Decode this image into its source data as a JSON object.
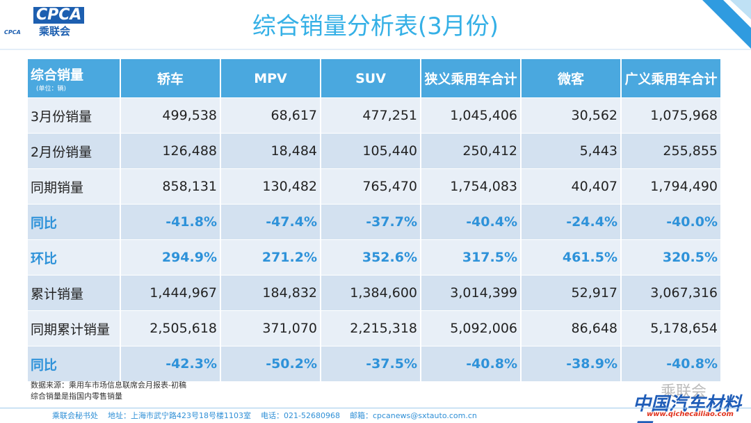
{
  "header": {
    "logo_text": "CPCA",
    "logo_sub": "乘联会",
    "logo_small": "CPCA",
    "title": "综合销量分析表(3月份)"
  },
  "table": {
    "corner_title": "综合销量",
    "corner_unit": "(单位：辆)",
    "columns": [
      "轿车",
      "MPV",
      "SUV",
      "狭义乘用车合计",
      "微客",
      "广义乘用车合计"
    ],
    "rows": [
      [
        "3月份销量",
        "499,538",
        "68,617",
        "477,251",
        "1,045,406",
        "30,562",
        "1,075,968"
      ],
      [
        "2月份销量",
        "126,488",
        "18,484",
        "105,440",
        "250,412",
        "5,443",
        "255,855"
      ],
      [
        "同期销量",
        "858,131",
        "130,482",
        "765,470",
        "1,754,083",
        "40,407",
        "1,794,490"
      ],
      [
        "同比",
        "-41.8%",
        "-47.4%",
        "-37.7%",
        "-40.4%",
        "-24.4%",
        "-40.0%"
      ],
      [
        "环比",
        "294.9%",
        "271.2%",
        "352.6%",
        "317.5%",
        "461.5%",
        "320.5%"
      ],
      [
        "累计销量",
        "1,444,967",
        "184,832",
        "1,384,600",
        "3,014,399",
        "52,917",
        "3,067,316"
      ],
      [
        "同期累计销量",
        "2,505,618",
        "371,070",
        "2,215,318",
        "5,092,006",
        "86,648",
        "5,178,654"
      ],
      [
        "同比",
        "-42.3%",
        "-50.2%",
        "-37.5%",
        "-40.8%",
        "-38.9%",
        "-40.8%"
      ]
    ]
  },
  "notes": [
    "数据来源：乘用车市场信息联席会月报表-初稿",
    "综合销量是指国内零售销量"
  ],
  "footer": {
    "org": "乘联会秘书处",
    "address": "地址：上海市武宁路423号18号楼1103室",
    "phone": "电话：021-52680968",
    "email": "邮箱：cpcanews@sxtauto.com.cn"
  },
  "watermark": {
    "account": "乘联会",
    "site_name": "中国汽车材料网",
    "site_url": "www.qichecailiao.com"
  }
}
